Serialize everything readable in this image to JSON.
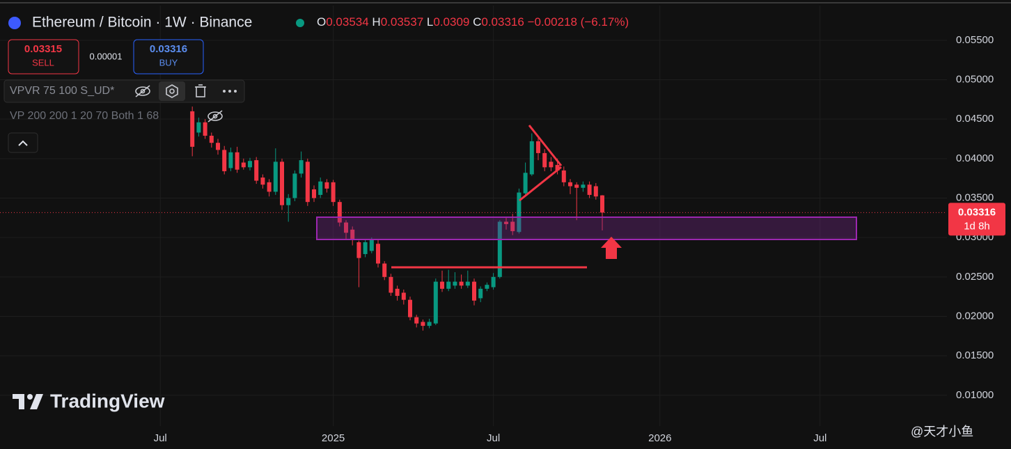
{
  "header": {
    "title": "Ethereum / Bitcoin · 1W · Binance",
    "ohlc_labels": [
      "O",
      "H",
      "L",
      "C"
    ],
    "change": "−0.00218 (−6.17%)",
    "sell_price": 0.03315,
    "sell_label": "SELL",
    "spread": 1e-05,
    "buy_price": 0.03316,
    "buy_label": "BUY",
    "indicators": [
      "VPVR 75 100 S_UD*",
      "VP 200 200 1 20 70 Both 1 68"
    ],
    "logo": "TradingView",
    "watermark": "@天才小鱼"
  },
  "chart_data": {
    "type": "candlestick",
    "categories": [
      null,
      "Jul",
      null,
      null,
      null,
      null,
      null,
      null,
      null,
      null,
      null,
      null,
      null,
      null,
      null,
      null,
      null,
      null,
      null,
      null,
      null,
      null,
      null,
      null,
      null,
      null,
      null,
      null,
      "2025",
      null,
      null,
      null,
      null,
      null,
      null,
      null,
      null,
      null,
      null,
      null,
      null,
      null,
      null,
      null,
      null,
      null,
      null,
      null,
      null,
      null,
      null,
      null,
      null,
      "Jul",
      null,
      null,
      null,
      null,
      null,
      null,
      null,
      null,
      null,
      null,
      null,
      null,
      null,
      null,
      null,
      null,
      null,
      null,
      null,
      null,
      null,
      null,
      null,
      null,
      null,
      "2026",
      null,
      null,
      null,
      null,
      null,
      null,
      null,
      null,
      null,
      null,
      null,
      null,
      null,
      null,
      null,
      null,
      null,
      null,
      null,
      null,
      null,
      null,
      null,
      null,
      "Jul"
    ],
    "open": [
      null,
      null,
      null,
      null,
      null,
      null,
      0.046,
      0.0433,
      0.0446,
      0.0429,
      0.042,
      0.0411,
      0.0388,
      0.0408,
      0.0395,
      0.0389,
      0.0398,
      0.0376,
      0.037,
      0.0358,
      0.0396,
      0.0341,
      0.035,
      0.0381,
      0.0396,
      0.0361,
      0.0354,
      0.037,
      0.037,
      0.0345,
      0.0319,
      0.031,
      0.0294,
      0.0279,
      0.0283,
      0.0292,
      0.0267,
      0.025,
      0.0235,
      0.023,
      0.0221,
      0.0199,
      0.0193,
      0.0188,
      0.0191,
      0.0244,
      0.0235,
      0.0239,
      0.0244,
      0.0239,
      0.0244,
      0.0223,
      0.0235,
      0.0237,
      0.025,
      0.032,
      0.032,
      0.0307,
      0.0356,
      0.038,
      0.0422,
      0.0407,
      0.0396,
      0.0392,
      0.0385,
      0.037,
      0.0367,
      0.0363,
      0.0367,
      0.0365,
      0.03534,
      null,
      null,
      null,
      null,
      null,
      null,
      null,
      null,
      null,
      null,
      null,
      null,
      null,
      null,
      null,
      null,
      null,
      null,
      null,
      null,
      null,
      null,
      null,
      null,
      null,
      null,
      null,
      null,
      null,
      null,
      null,
      null,
      null,
      null
    ],
    "high": [
      null,
      null,
      null,
      null,
      null,
      null,
      0.0466,
      0.0452,
      0.045,
      0.0433,
      0.0425,
      0.0416,
      0.0414,
      0.0415,
      0.04,
      0.0401,
      0.0402,
      0.038,
      0.0374,
      0.0413,
      0.04,
      0.0355,
      0.0385,
      0.0409,
      0.04,
      0.0366,
      0.0376,
      0.0374,
      0.0373,
      0.0348,
      0.0322,
      0.0314,
      0.0296,
      0.0298,
      0.03,
      0.0297,
      0.027,
      0.0254,
      0.0239,
      0.0234,
      0.0225,
      0.0202,
      0.0196,
      0.0197,
      0.0248,
      0.0258,
      0.0259,
      0.0256,
      0.0253,
      0.0258,
      0.0248,
      0.0238,
      0.0243,
      0.0255,
      0.0322,
      0.0326,
      0.033,
      0.0362,
      0.0395,
      0.0432,
      0.0428,
      0.0412,
      0.0402,
      0.04,
      0.039,
      0.0374,
      0.037,
      0.0371,
      0.0371,
      0.0369,
      0.03537,
      null,
      null,
      null,
      null,
      null,
      null,
      null,
      null,
      null,
      null,
      null,
      null,
      null,
      null,
      null,
      null,
      null,
      null,
      null,
      null,
      null,
      null,
      null,
      null,
      null,
      null,
      null,
      null,
      null,
      null,
      null,
      null,
      null,
      null
    ],
    "low": [
      null,
      null,
      null,
      null,
      null,
      null,
      0.0403,
      0.0428,
      0.0425,
      0.0414,
      0.0405,
      0.038,
      0.0384,
      0.0382,
      0.0386,
      0.0385,
      0.0368,
      0.0362,
      0.0352,
      0.0354,
      0.0335,
      0.032,
      0.0346,
      0.0376,
      0.034,
      0.0345,
      0.035,
      0.0357,
      0.034,
      0.0314,
      0.0298,
      0.029,
      0.0237,
      0.0275,
      0.028,
      0.0262,
      0.0246,
      0.0226,
      0.022,
      0.0215,
      0.0195,
      0.0186,
      0.0182,
      0.0185,
      0.0189,
      0.0231,
      0.0232,
      0.0235,
      0.0235,
      0.0236,
      0.0214,
      0.0218,
      0.0232,
      0.0234,
      0.0248,
      0.031,
      0.0303,
      0.0305,
      0.0352,
      0.0378,
      0.0398,
      0.0384,
      0.0384,
      0.038,
      0.0365,
      0.0355,
      0.0322,
      0.0358,
      0.035,
      0.0348,
      0.0309,
      null,
      null,
      null,
      null,
      null,
      null,
      null,
      null,
      null,
      null,
      null,
      null,
      null,
      null,
      null,
      null,
      null,
      null,
      null,
      null,
      null,
      null,
      null,
      null,
      null,
      null,
      null,
      null,
      null,
      null,
      null,
      null,
      null,
      null
    ],
    "close": [
      null,
      null,
      null,
      null,
      null,
      null,
      0.0415,
      0.0446,
      0.0429,
      0.042,
      0.0411,
      0.0384,
      0.0408,
      0.0386,
      0.0389,
      0.0397,
      0.0372,
      0.0367,
      0.0358,
      0.0396,
      0.0341,
      0.035,
      0.0381,
      0.0398,
      0.0345,
      0.035,
      0.0371,
      0.0362,
      0.0345,
      0.0319,
      0.0306,
      0.0297,
      0.0274,
      0.0294,
      0.0297,
      0.0267,
      0.025,
      0.023,
      0.0226,
      0.0221,
      0.0199,
      0.0191,
      0.0188,
      0.0193,
      0.0244,
      0.0235,
      0.0244,
      0.0244,
      0.0239,
      0.0244,
      0.022,
      0.0235,
      0.024,
      0.025,
      0.032,
      0.0317,
      0.0308,
      0.0357,
      0.0382,
      0.0422,
      0.0407,
      0.0389,
      0.0389,
      0.0385,
      0.037,
      0.0365,
      0.0363,
      0.0367,
      0.0354,
      0.0352,
      0.03316,
      null,
      null,
      null,
      null,
      null,
      null,
      null,
      null,
      null,
      null,
      null,
      null,
      null,
      null,
      null,
      null,
      null,
      null,
      null,
      null,
      null,
      null,
      null,
      null,
      null,
      null,
      null,
      null,
      null,
      null,
      null,
      null,
      null,
      null
    ],
    "up_color": "#089981",
    "down_color": "#f23645",
    "ylim": [
      0.0061,
      0.0594
    ],
    "yticks": [
      {
        "value": 0.01,
        "label": "0.01000"
      },
      {
        "value": 0.015,
        "label": "0.01500"
      },
      {
        "value": 0.02,
        "label": "0.02000"
      },
      {
        "value": 0.025,
        "label": "0.02500"
      },
      {
        "value": 0.03,
        "label": "0.03000"
      },
      {
        "value": 0.035,
        "label": "0.03500"
      },
      {
        "value": 0.04,
        "label": "0.04000"
      },
      {
        "value": 0.045,
        "label": "0.04500"
      },
      {
        "value": 0.05,
        "label": "0.05000"
      },
      {
        "value": 0.055,
        "label": "0.05500"
      }
    ],
    "grid": true,
    "last_price_countdown": "1d 8h"
  }
}
